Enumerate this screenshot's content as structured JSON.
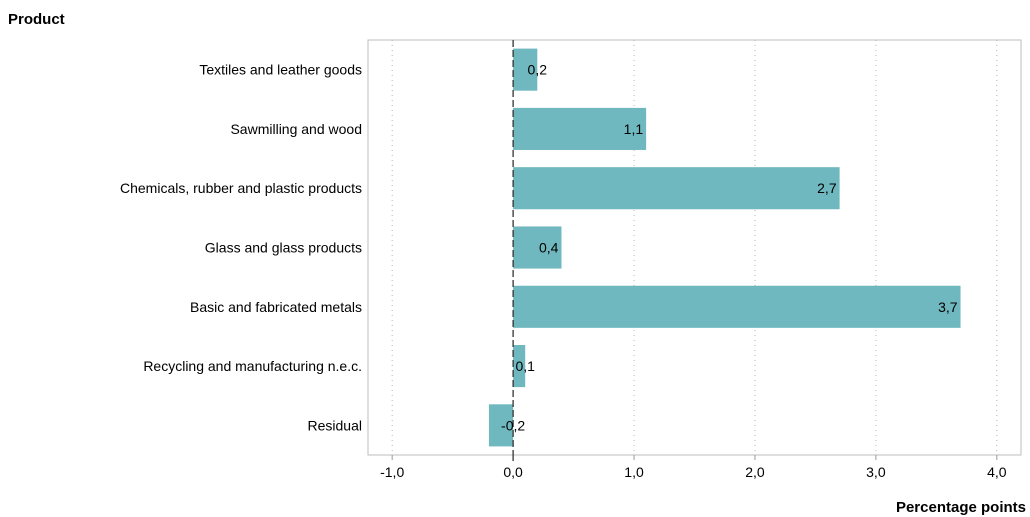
{
  "chart_data": {
    "type": "bar",
    "orientation": "horizontal",
    "title": "",
    "ylabel": "Product",
    "xlabel": "Percentage points",
    "categories": [
      "Textiles and leather goods",
      "Sawmilling and wood",
      "Chemicals, rubber and plastic products",
      "Glass and glass products",
      "Basic and fabricated metals",
      "Recycling and manufacturing n.e.c.",
      "Residual"
    ],
    "values": [
      0.2,
      1.1,
      2.7,
      0.4,
      3.7,
      0.1,
      -0.2
    ],
    "data_labels": [
      "0,2",
      "1,1",
      "2,7",
      "0,4",
      "3,7",
      "0,1",
      "-0,2"
    ],
    "xlim": [
      -1.2,
      4.2
    ],
    "ticks": [
      -1.0,
      0.0,
      1.0,
      2.0,
      3.0,
      4.0
    ],
    "tick_labels": [
      "-1,0",
      "0,0",
      "1,0",
      "2,0",
      "3,0",
      "4,0"
    ],
    "grid": "vertical-dotted",
    "bar_color": "#6fb8bf",
    "zero_line_style": "dashed"
  }
}
